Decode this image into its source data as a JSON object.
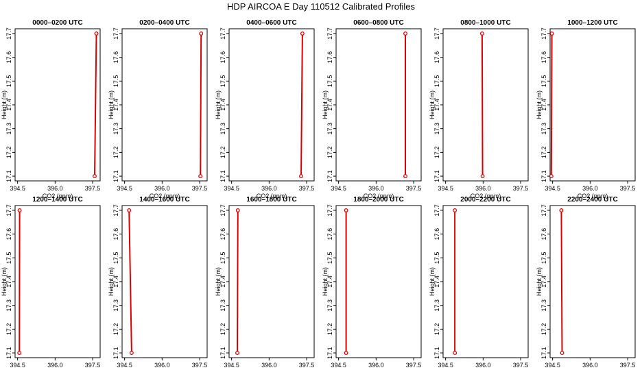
{
  "page_title": "HDP AIRCOA E  Day 110512  Calibrated Profiles",
  "chart_data": {
    "type": "line",
    "title": "HDP AIRCOA E  Day 110512  Calibrated Profiles",
    "xlabel": "CO2 (ppm)",
    "ylabel": "Height (m)",
    "xlim": [
      394.4,
      397.8
    ],
    "ylim": [
      17.08,
      17.72
    ],
    "x_ticks": [
      "394.5",
      "396.0",
      "397.5"
    ],
    "y_ticks": [
      "17.1",
      "17.2",
      "17.3",
      "17.4",
      "17.5",
      "17.6",
      "17.7"
    ],
    "y_tick_values": [
      17.1,
      17.2,
      17.3,
      17.4,
      17.5,
      17.6,
      17.7
    ],
    "x_tick_values": [
      394.5,
      396.0,
      397.5
    ],
    "grid": false,
    "line_color": "#dd0000",
    "panels": [
      {
        "title": "0000–0200 UTC",
        "x": [
          397.58,
          397.65
        ],
        "y": [
          17.1,
          17.7
        ]
      },
      {
        "title": "0200–0400 UTC",
        "x": [
          397.53,
          397.56
        ],
        "y": [
          17.1,
          17.7
        ]
      },
      {
        "title": "0400–0600 UTC",
        "x": [
          397.28,
          397.33
        ],
        "y": [
          17.1,
          17.7
        ]
      },
      {
        "title": "0600–0800 UTC",
        "x": [
          397.17,
          397.17
        ],
        "y": [
          17.1,
          17.7
        ]
      },
      {
        "title": "0800–1000 UTC",
        "x": [
          395.98,
          395.96
        ],
        "y": [
          17.1,
          17.7
        ]
      },
      {
        "title": "1000–1200 UTC",
        "x": [
          394.45,
          394.47
        ],
        "y": [
          17.1,
          17.7
        ]
      },
      {
        "title": "1200–1400 UTC",
        "x": [
          394.57,
          394.58
        ],
        "y": [
          17.1,
          17.7
        ]
      },
      {
        "title": "1400–1600 UTC",
        "x": [
          394.78,
          394.68
        ],
        "y": [
          17.1,
          17.7
        ]
      },
      {
        "title": "1600–1800 UTC",
        "x": [
          394.73,
          394.75
        ],
        "y": [
          17.1,
          17.7
        ]
      },
      {
        "title": "1800–2000 UTC",
        "x": [
          394.8,
          394.8
        ],
        "y": [
          17.1,
          17.7
        ]
      },
      {
        "title": "2000–2200 UTC",
        "x": [
          394.87,
          394.87
        ],
        "y": [
          17.1,
          17.7
        ]
      },
      {
        "title": "2200–2400 UTC",
        "x": [
          394.88,
          394.85
        ],
        "y": [
          17.1,
          17.7
        ]
      }
    ]
  }
}
